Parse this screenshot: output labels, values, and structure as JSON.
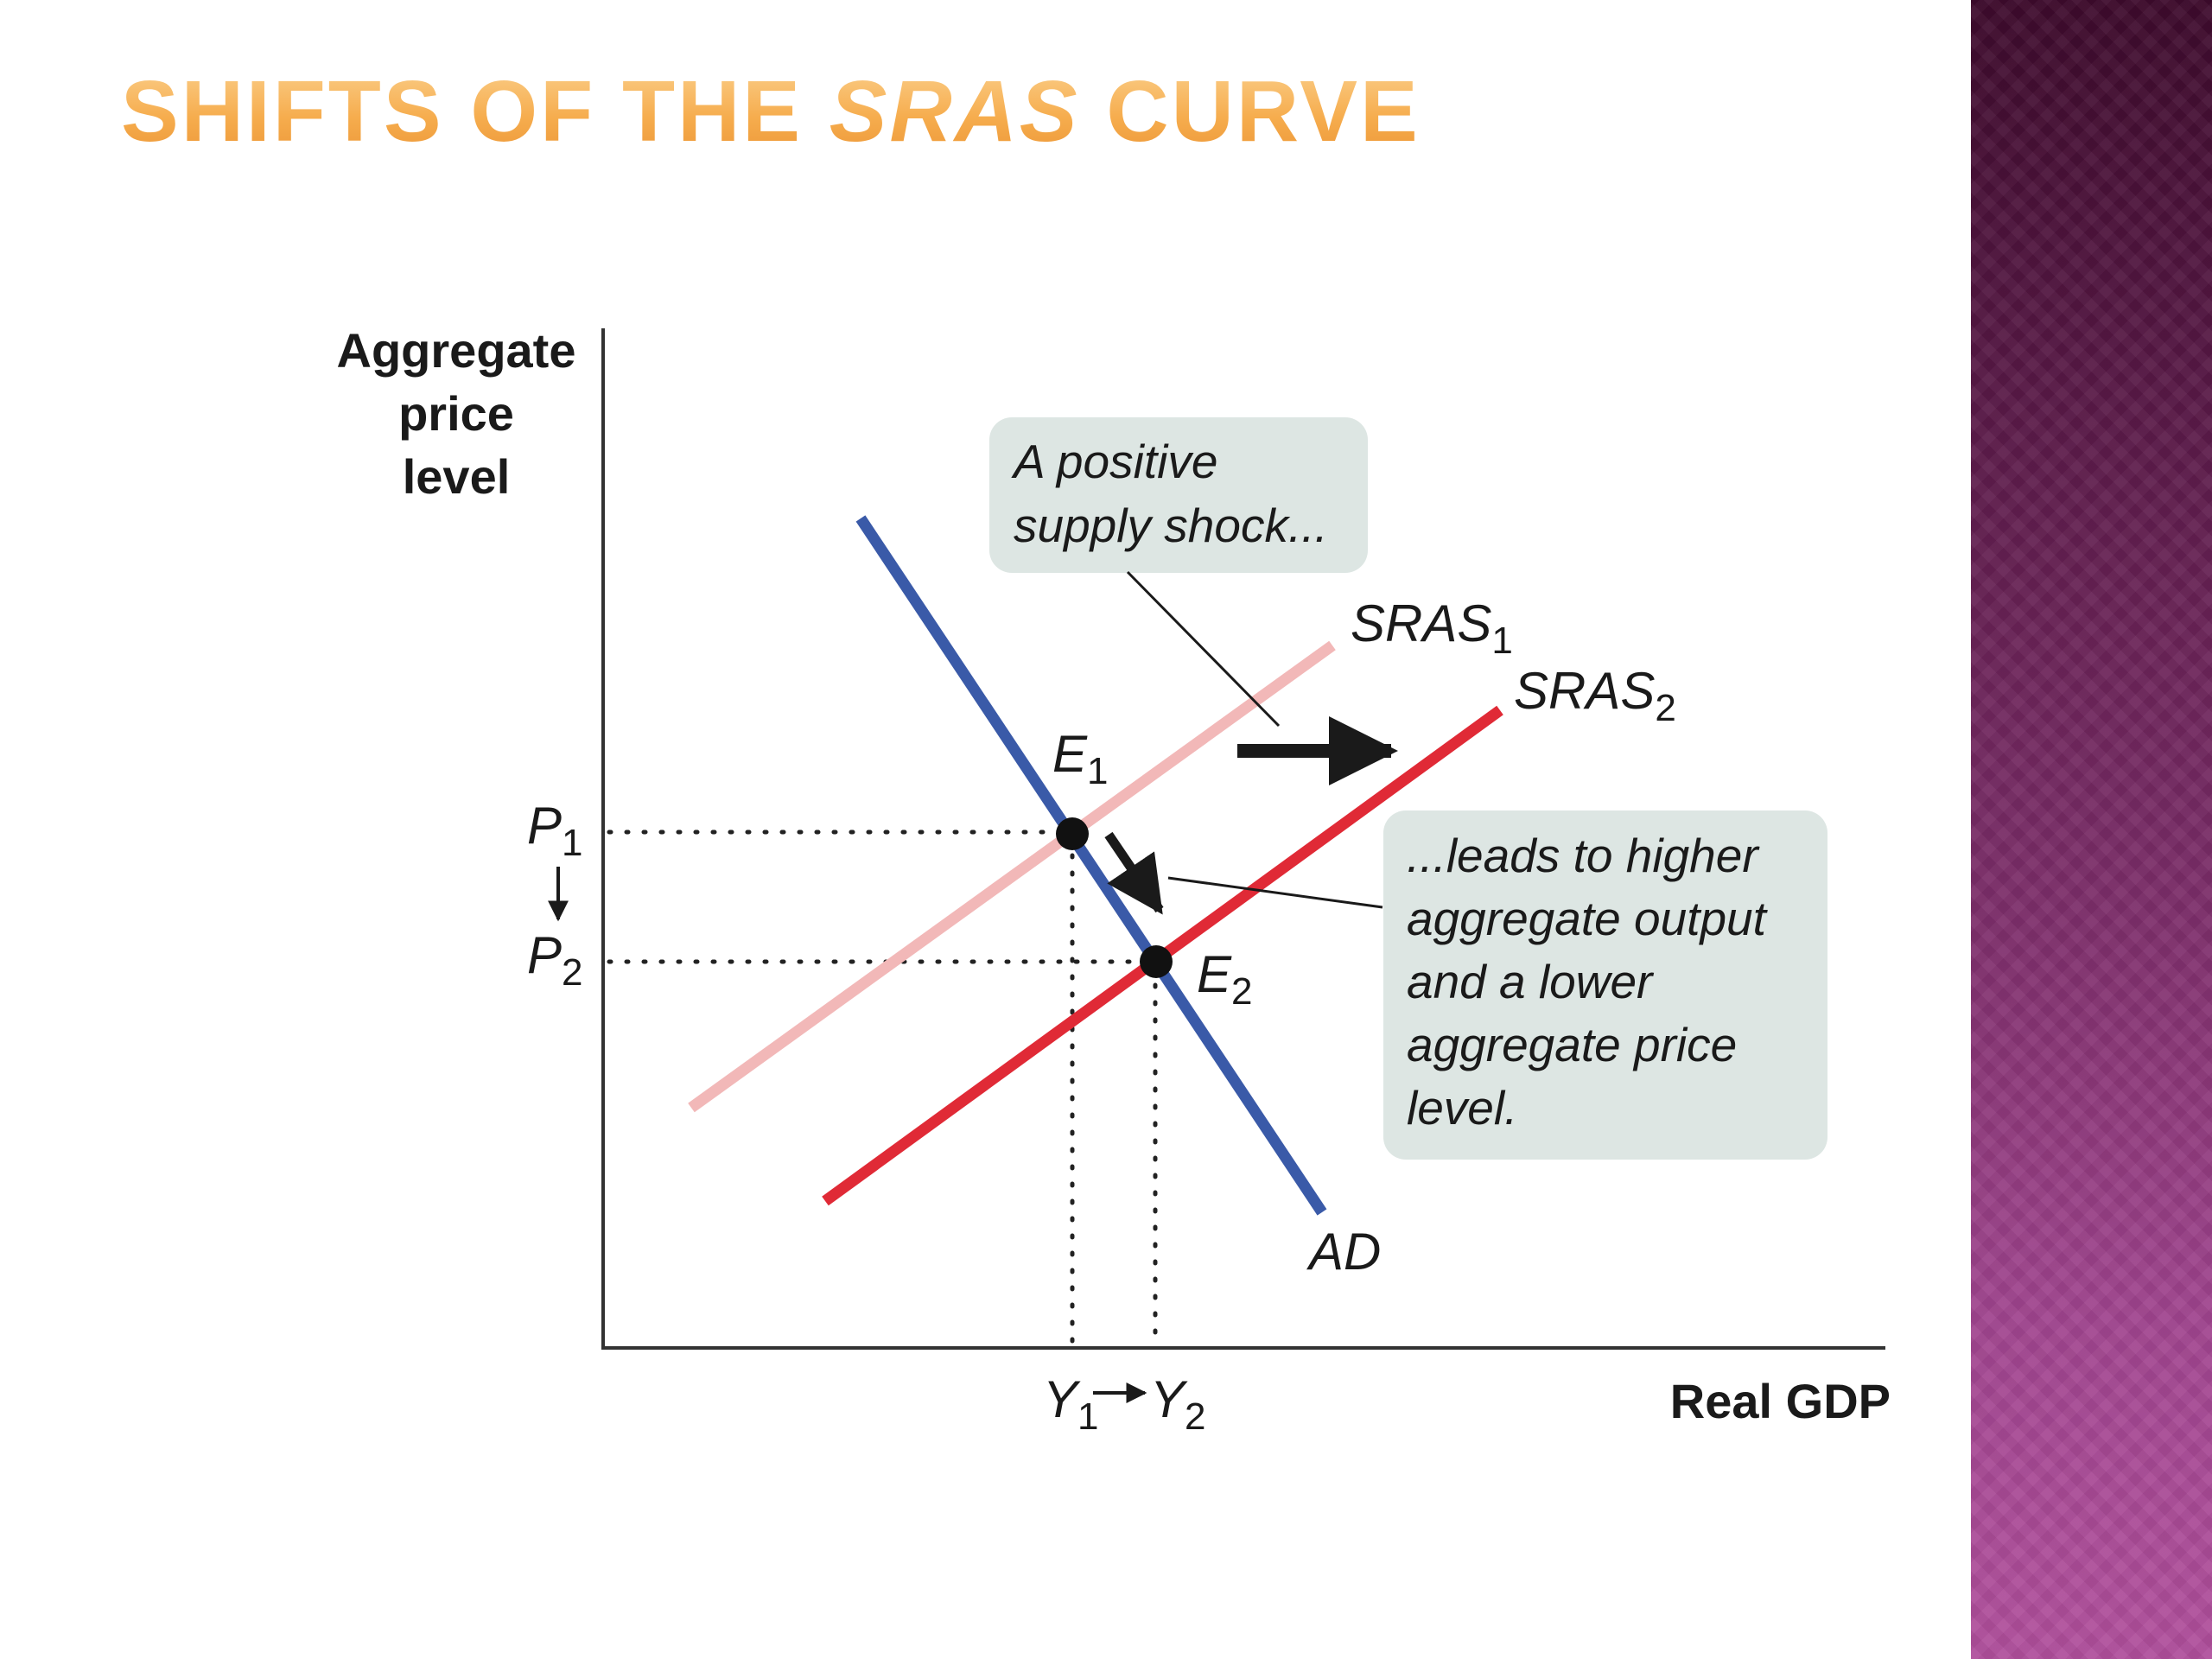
{
  "slide": {
    "title_part1": "SHIFTS OF THE ",
    "title_italic": "SRAS",
    "title_part2": " CURVE"
  },
  "diagram": {
    "y_axis_label": [
      "Aggregate",
      "price",
      "level"
    ],
    "x_axis_label": "Real GDP",
    "curves": {
      "ad": "AD",
      "sras1": {
        "main": "SRAS",
        "sub": "1"
      },
      "sras2": {
        "main": "SRAS",
        "sub": "2"
      }
    },
    "points": {
      "e1": {
        "main": "E",
        "sub": "1"
      },
      "e2": {
        "main": "E",
        "sub": "2"
      }
    },
    "price_levels": {
      "p1": {
        "main": "P",
        "sub": "1"
      },
      "p2": {
        "main": "P",
        "sub": "2"
      }
    },
    "output_levels": {
      "y1": {
        "main": "Y",
        "sub": "1"
      },
      "y2": {
        "main": "Y",
        "sub": "2"
      }
    },
    "callout_top": [
      "A positive",
      "supply shock..."
    ],
    "callout_right": [
      "...leads to higher",
      "aggregate output",
      "and a lower",
      "aggregate price",
      "level."
    ]
  },
  "colors": {
    "ad_curve": "#3a5aa8",
    "sras1_curve": "#f2b8b8",
    "sras2_curve": "#e02a36",
    "callout_bg": "#dde6e3",
    "title": "#f6ad4e",
    "side_panel": "#7d2e6a"
  }
}
